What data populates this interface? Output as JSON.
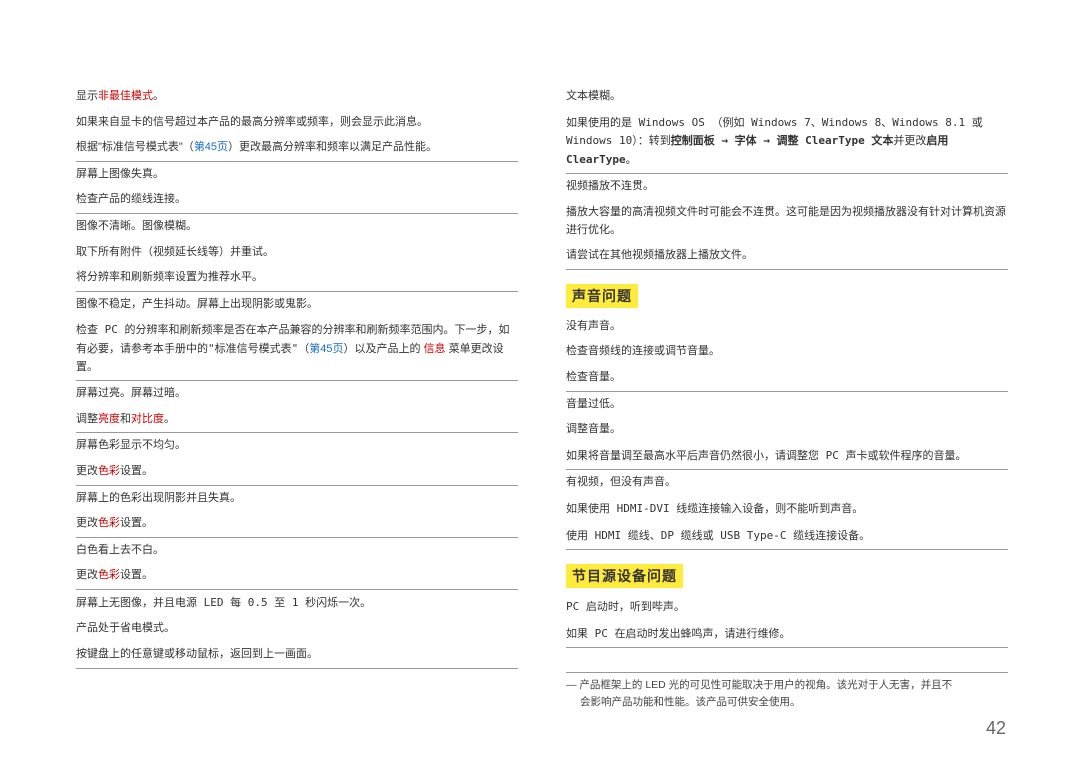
{
  "pageNumber": "42",
  "left": {
    "rows": [
      {
        "segs": [
          {
            "t": "显示",
            "c": ""
          },
          {
            "t": "非最佳模式",
            "c": "red"
          },
          {
            "t": "。",
            "c": ""
          }
        ]
      },
      {
        "segs": [
          {
            "t": "如果来自显卡的信号超过本产品的最高分辨率或频率，则会显示此消息。",
            "c": ""
          }
        ]
      },
      {
        "segs": [
          {
            "t": "根据\"标准信号模式表\"（",
            "c": ""
          },
          {
            "t": "第45页",
            "c": "link"
          },
          {
            "t": "）更改最高分辨率和频率以满足产品性能。",
            "c": ""
          }
        ],
        "hr": true
      },
      {
        "segs": [
          {
            "t": "屏幕上图像失真。",
            "c": ""
          }
        ]
      },
      {
        "segs": [
          {
            "t": "检查产品的缆线连接。",
            "c": ""
          }
        ],
        "hr": true
      },
      {
        "segs": [
          {
            "t": "图像不清晰。图像模糊。",
            "c": ""
          }
        ]
      },
      {
        "segs": [
          {
            "t": "取下所有附件（视频延长线等）并重试。",
            "c": ""
          }
        ]
      },
      {
        "segs": [
          {
            "t": "将分辨率和刷新频率设置为推荐水平。",
            "c": ""
          }
        ],
        "hr": true
      },
      {
        "segs": [
          {
            "t": "图像不稳定，产生抖动。屏幕上出现阴影或鬼影。",
            "c": ""
          }
        ]
      },
      {
        "segs": [
          {
            "t": "检查 PC 的分辨率和刷新频率是否在本产品兼容的分辨率和刷新频率范围内。下一步，如有必要，请参考本手册中的\"标准信号模式表\"（",
            "c": "mono"
          },
          {
            "t": "第45页",
            "c": "link"
          },
          {
            "t": "）以及产品上的 ",
            "c": ""
          },
          {
            "t": "信息",
            "c": "red"
          },
          {
            "t": " 菜单更改设置。",
            "c": ""
          }
        ],
        "hr": true
      },
      {
        "segs": [
          {
            "t": "屏幕过亮。屏幕过暗。",
            "c": ""
          }
        ]
      },
      {
        "segs": [
          {
            "t": "调整",
            "c": ""
          },
          {
            "t": "亮度",
            "c": "red"
          },
          {
            "t": "和",
            "c": ""
          },
          {
            "t": "对比度",
            "c": "red"
          },
          {
            "t": "。",
            "c": ""
          }
        ],
        "hr": true
      },
      {
        "segs": [
          {
            "t": "屏幕色彩显示不均匀。",
            "c": ""
          }
        ]
      },
      {
        "segs": [
          {
            "t": "更改",
            "c": ""
          },
          {
            "t": "色彩",
            "c": "red"
          },
          {
            "t": "设置。",
            "c": ""
          }
        ],
        "hr": true
      },
      {
        "segs": [
          {
            "t": "屏幕上的色彩出现阴影并且失真。",
            "c": ""
          }
        ]
      },
      {
        "segs": [
          {
            "t": "更改",
            "c": ""
          },
          {
            "t": "色彩",
            "c": "red"
          },
          {
            "t": "设置。",
            "c": ""
          }
        ],
        "hr": true
      },
      {
        "segs": [
          {
            "t": "白色看上去不白。",
            "c": ""
          }
        ]
      },
      {
        "segs": [
          {
            "t": "更改",
            "c": ""
          },
          {
            "t": "色彩",
            "c": "red"
          },
          {
            "t": "设置。",
            "c": ""
          }
        ],
        "hr": true
      },
      {
        "segs": [
          {
            "t": "屏幕上无图像，并且电源 LED 每 0.5 至 1 秒闪烁一次。",
            "c": "mono"
          }
        ]
      },
      {
        "segs": [
          {
            "t": "产品处于省电模式。",
            "c": ""
          }
        ]
      },
      {
        "segs": [
          {
            "t": "按键盘上的任意键或移动鼠标，返回到上一画面。",
            "c": ""
          }
        ],
        "hr": true
      }
    ]
  },
  "right": {
    "block1": [
      {
        "segs": [
          {
            "t": "文本模糊。",
            "c": ""
          }
        ]
      },
      {
        "segs": [
          {
            "t": "如果使用的是 Windows OS （例如 Windows 7、Windows 8、Windows 8.1 或 Windows 10）：转到",
            "c": "mono"
          },
          {
            "t": "控制面板 → 字体 → 调整 ClearType 文本",
            "c": "bold mono"
          },
          {
            "t": "并更改",
            "c": ""
          },
          {
            "t": "启用 ClearType",
            "c": "bold mono"
          },
          {
            "t": "。",
            "c": ""
          }
        ],
        "hr": true
      },
      {
        "segs": [
          {
            "t": "视频播放不连贯。",
            "c": ""
          }
        ]
      },
      {
        "segs": [
          {
            "t": "播放大容量的高清视频文件时可能会不连贯。这可能是因为视频播放器没有针对计算机资源进行优化。",
            "c": ""
          }
        ]
      },
      {
        "segs": [
          {
            "t": "请尝试在其他视频播放器上播放文件。",
            "c": ""
          }
        ],
        "hr": true
      }
    ],
    "section2Title": "声音问题",
    "block2": [
      {
        "segs": [
          {
            "t": "没有声音。",
            "c": ""
          }
        ]
      },
      {
        "segs": [
          {
            "t": "检查音频线的连接或调节音量。",
            "c": ""
          }
        ]
      },
      {
        "segs": [
          {
            "t": "检查音量。",
            "c": ""
          }
        ],
        "hr": true
      },
      {
        "segs": [
          {
            "t": "音量过低。",
            "c": ""
          }
        ]
      },
      {
        "segs": [
          {
            "t": "调整音量。",
            "c": ""
          }
        ]
      },
      {
        "segs": [
          {
            "t": "如果将音量调至最高水平后声音仍然很小，请调整您 PC 声卡或软件程序的音量。",
            "c": "mono"
          }
        ],
        "hr": true
      },
      {
        "segs": [
          {
            "t": "有视频，但没有声音。",
            "c": ""
          }
        ]
      },
      {
        "segs": [
          {
            "t": "如果使用 HDMI-DVI 线缆连接输入设备，则不能听到声音。",
            "c": "mono"
          }
        ]
      },
      {
        "segs": [
          {
            "t": "使用 HDMI 缆线、DP 缆线或 USB Type-C 缆线连接设备。",
            "c": "mono"
          }
        ],
        "hr": true
      }
    ],
    "section3Title": "节目源设备问题",
    "block3": [
      {
        "segs": [
          {
            "t": "PC 启动时，听到哔声。",
            "c": "mono"
          }
        ]
      },
      {
        "segs": [
          {
            "t": "如果 PC 在启动时发出蜂鸣声，请进行维修。",
            "c": "mono"
          }
        ],
        "hr": true
      }
    ],
    "footnote": {
      "marker": "―",
      "line1": "产品框架上的 LED 光的可见性可能取决于用户的视角。该光对于人无害，并且不",
      "line2": "会影响产品功能和性能。该产品可供安全使用。"
    }
  }
}
